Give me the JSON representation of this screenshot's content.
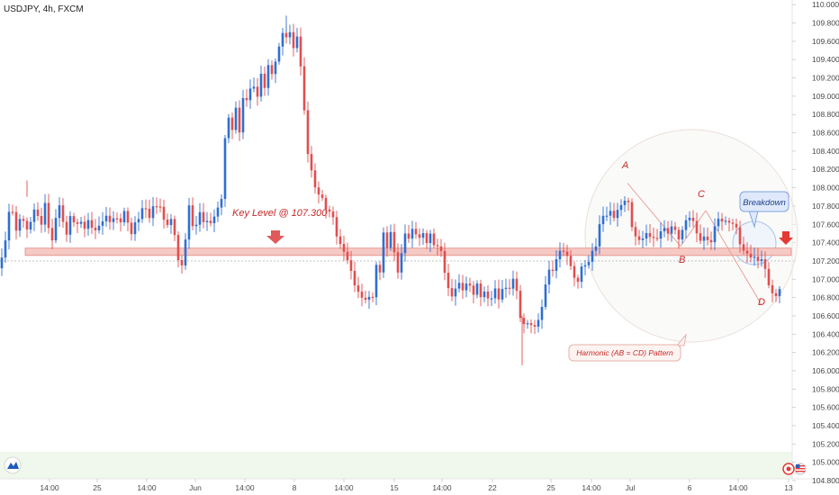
{
  "header": {
    "symbol_title": "USDJPY, 4h, FXCM"
  },
  "colors": {
    "up": "#2f6fd1",
    "down": "#e04f4f",
    "zone_fill": "#f6c9c4",
    "zone_stroke": "#e08a80",
    "annotation": "#c62828",
    "badge_fill": "#dfe9fb",
    "badge_stroke": "#7fa4e0",
    "bottom_band": "#f0f7ec"
  },
  "icons": {
    "logo": "tradingview-logo-icon",
    "record": "record-icon",
    "flag": "us-flag-icon",
    "down_arrow": "down-arrow-icon"
  },
  "chart_data": {
    "type": "candlestick",
    "title": "USDJPY, 4h, FXCM",
    "ylim": [
      104.8,
      110.0
    ],
    "y_tick_labels": [
      "110.000",
      "109.800",
      "109.600",
      "109.400",
      "109.200",
      "109.000",
      "108.800",
      "108.600",
      "108.400",
      "108.200",
      "108.000",
      "107.800",
      "107.600",
      "107.400",
      "107.200",
      "107.000",
      "106.800",
      "106.600",
      "106.400",
      "106.200",
      "106.000",
      "105.800",
      "105.600",
      "105.400",
      "105.200",
      "105.000",
      "104.800"
    ],
    "x_tick_labels": [
      "14:00",
      "25",
      "14:00",
      "Jun",
      "14:00",
      "8",
      "14:00",
      "15",
      "14:00",
      "22",
      "25",
      "14:00",
      "Jul",
      "6",
      "14:00",
      "13"
    ],
    "anchors": [
      [
        0,
        107.15
      ],
      [
        4,
        107.33
      ],
      [
        8,
        107.6
      ],
      [
        12,
        107.9
      ],
      [
        18,
        107.55
      ],
      [
        24,
        107.72
      ],
      [
        30,
        107.5
      ],
      [
        38,
        107.72
      ],
      [
        46,
        107.6
      ],
      [
        50,
        107.82
      ],
      [
        54,
        107.6
      ],
      [
        58,
        107.45
      ],
      [
        62,
        107.7
      ],
      [
        66,
        107.85
      ],
      [
        70,
        107.62
      ],
      [
        74,
        107.5
      ],
      [
        78,
        107.66
      ],
      [
        84,
        107.55
      ],
      [
        88,
        107.62
      ],
      [
        93,
        107.52
      ],
      [
        97,
        107.66
      ],
      [
        101,
        107.58
      ],
      [
        106,
        107.58
      ],
      [
        110,
        107.6
      ],
      [
        114,
        107.68
      ],
      [
        118,
        107.7
      ],
      [
        122,
        107.62
      ],
      [
        128,
        107.68
      ],
      [
        132,
        107.55
      ],
      [
        136,
        107.66
      ],
      [
        140,
        107.75
      ],
      [
        144,
        107.45
      ],
      [
        150,
        107.62
      ],
      [
        156,
        107.75
      ],
      [
        160,
        107.85
      ],
      [
        166,
        107.7
      ],
      [
        172,
        107.82
      ],
      [
        178,
        107.75
      ],
      [
        184,
        107.55
      ],
      [
        190,
        107.62
      ],
      [
        194,
        107.5
      ],
      [
        197,
        107.22
      ],
      [
        202,
        107.18
      ],
      [
        206,
        107.48
      ],
      [
        210,
        107.82
      ],
      [
        216,
        107.52
      ],
      [
        222,
        107.72
      ],
      [
        228,
        107.55
      ],
      [
        232,
        107.62
      ],
      [
        236,
        107.58
      ],
      [
        240,
        107.72
      ],
      [
        246,
        107.9
      ],
      [
        250,
        108.55
      ],
      [
        254,
        108.82
      ],
      [
        258,
        108.65
      ],
      [
        262,
        108.9
      ],
      [
        266,
        108.62
      ],
      [
        270,
        108.95
      ],
      [
        276,
        108.95
      ],
      [
        280,
        109.12
      ],
      [
        286,
        108.98
      ],
      [
        290,
        109.22
      ],
      [
        294,
        109.12
      ],
      [
        298,
        109.35
      ],
      [
        302,
        109.28
      ],
      [
        306,
        109.42
      ],
      [
        310,
        109.55
      ],
      [
        314,
        109.72
      ],
      [
        318,
        109.62
      ],
      [
        322,
        109.68
      ],
      [
        326,
        109.5
      ],
      [
        330,
        109.6
      ],
      [
        334,
        109.32
      ],
      [
        338,
        108.82
      ],
      [
        342,
        108.38
      ],
      [
        346,
        108.22
      ],
      [
        350,
        108.02
      ],
      [
        356,
        107.96
      ],
      [
        362,
        107.78
      ],
      [
        368,
        107.72
      ],
      [
        372,
        107.56
      ],
      [
        376,
        107.35
      ],
      [
        380,
        107.32
      ],
      [
        386,
        107.2
      ],
      [
        392,
        107.02
      ],
      [
        398,
        106.88
      ],
      [
        404,
        106.82
      ],
      [
        408,
        106.8
      ],
      [
        414,
        106.82
      ],
      [
        418,
        107.12
      ],
      [
        422,
        107.05
      ],
      [
        426,
        107.48
      ],
      [
        430,
        107.3
      ],
      [
        434,
        107.52
      ],
      [
        438,
        107.28
      ],
      [
        442,
        107.1
      ],
      [
        446,
        107.32
      ],
      [
        450,
        107.52
      ],
      [
        456,
        107.48
      ],
      [
        460,
        107.62
      ],
      [
        464,
        107.38
      ],
      [
        468,
        107.5
      ],
      [
        474,
        107.38
      ],
      [
        478,
        107.45
      ],
      [
        484,
        107.32
      ],
      [
        488,
        107.4
      ],
      [
        492,
        107.22
      ],
      [
        496,
        107.02
      ],
      [
        500,
        106.82
      ],
      [
        506,
        106.92
      ],
      [
        510,
        106.95
      ],
      [
        516,
        106.85
      ],
      [
        520,
        106.96
      ],
      [
        526,
        106.8
      ],
      [
        530,
        106.92
      ],
      [
        534,
        106.82
      ],
      [
        540,
        106.88
      ],
      [
        544,
        106.78
      ],
      [
        550,
        106.92
      ],
      [
        554,
        106.82
      ],
      [
        558,
        106.88
      ],
      [
        564,
        106.92
      ],
      [
        568,
        106.82
      ],
      [
        572,
        107.1
      ],
      [
        576,
        106.62
      ],
      [
        580,
        106.45
      ],
      [
        584,
        106.58
      ],
      [
        588,
        106.48
      ],
      [
        592,
        106.55
      ],
      [
        596,
        106.52
      ],
      [
        600,
        106.62
      ],
      [
        604,
        106.85
      ],
      [
        608,
        107.05
      ],
      [
        612,
        107.12
      ],
      [
        616,
        107.05
      ],
      [
        620,
        107.28
      ],
      [
        624,
        107.3
      ],
      [
        628,
        107.25
      ],
      [
        632,
        107.22
      ],
      [
        636,
        107.12
      ],
      [
        640,
        106.92
      ],
      [
        644,
        107.12
      ],
      [
        648,
        107.22
      ],
      [
        652,
        107.12
      ],
      [
        656,
        107.32
      ],
      [
        660,
        107.25
      ],
      [
        664,
        107.45
      ],
      [
        668,
        107.68
      ],
      [
        672,
        107.62
      ],
      [
        676,
        107.75
      ],
      [
        680,
        107.68
      ],
      [
        684,
        107.7
      ],
      [
        688,
        107.85
      ],
      [
        692,
        107.82
      ],
      [
        696,
        108.0
      ],
      [
        700,
        107.7
      ],
      [
        704,
        107.5
      ],
      [
        708,
        107.42
      ],
      [
        712,
        107.38
      ],
      [
        716,
        107.48
      ],
      [
        720,
        107.42
      ],
      [
        724,
        107.48
      ],
      [
        728,
        107.38
      ],
      [
        732,
        107.5
      ],
      [
        736,
        107.62
      ],
      [
        740,
        107.52
      ],
      [
        744,
        107.58
      ],
      [
        748,
        107.62
      ],
      [
        752,
        107.48
      ],
      [
        756,
        107.42
      ],
      [
        760,
        107.58
      ],
      [
        764,
        107.68
      ],
      [
        768,
        107.58
      ],
      [
        772,
        107.62
      ],
      [
        776,
        107.38
      ],
      [
        780,
        107.42
      ],
      [
        784,
        107.58
      ],
      [
        788,
        107.32
      ],
      [
        792,
        107.55
      ],
      [
        796,
        107.7
      ],
      [
        800,
        107.62
      ],
      [
        804,
        107.68
      ],
      [
        808,
        107.55
      ],
      [
        812,
        107.62
      ],
      [
        816,
        107.55
      ],
      [
        820,
        107.48
      ],
      [
        824,
        107.28
      ],
      [
        828,
        107.32
      ],
      [
        832,
        107.26
      ],
      [
        836,
        107.3
      ],
      [
        840,
        107.22
      ],
      [
        844,
        107.28
      ],
      [
        848,
        107.18
      ],
      [
        852,
        107.05
      ],
      [
        856,
        106.82
      ],
      [
        860,
        106.78
      ],
      [
        864,
        106.82
      ],
      [
        868,
        106.88
      ]
    ],
    "key_level": {
      "value": 107.3,
      "label": "Key Level @ 107.300"
    },
    "zone": {
      "low": 107.26,
      "high": 107.34
    },
    "dotted_level": 107.2,
    "harmonic_points": [
      {
        "label": "A",
        "value": 108.05
      },
      {
        "label": "B",
        "value": 107.36
      },
      {
        "label": "C",
        "value": 107.75
      },
      {
        "label": "D",
        "value": 106.72
      }
    ],
    "annotations": {
      "breakdown": "Breakdown",
      "pattern": "Harmonic (AB = CD) Pattern"
    }
  }
}
